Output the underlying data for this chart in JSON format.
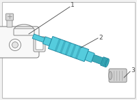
{
  "bg_color": "#f2f2f2",
  "border_color": "#bbbbbb",
  "stem_color": "#55ccdd",
  "stem_shade": "#3aabb8",
  "stem_dark": "#2288a0",
  "outline_color": "#888888",
  "outline_light": "#aaaaaa",
  "outline_fill": "#ffffff",
  "sensor_fill": "#f8f8f8",
  "cap_fill": "#d0d0d0",
  "label_color": "#444444",
  "label1": "1",
  "label2": "2",
  "label3": "3",
  "fig_width": 2.0,
  "fig_height": 1.47,
  "dpi": 100
}
